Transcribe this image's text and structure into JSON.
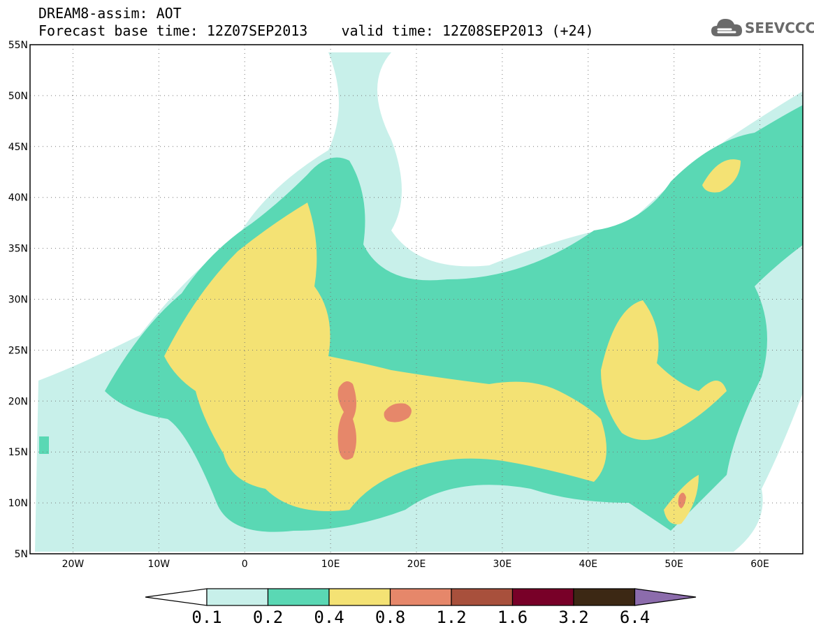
{
  "header": {
    "line1": "DREAM8-assim: AOT",
    "line2": "Forecast base time: 12Z07SEP2013    valid time: 12Z08SEP2013 (+24)"
  },
  "logo": {
    "text": "SEEVCCC",
    "icon": "cloud-icon"
  },
  "map": {
    "projection": "lat-lon",
    "lon_range": [
      -25,
      65
    ],
    "lat_range": [
      5,
      55
    ],
    "lat_ticks": [
      "5N",
      "10N",
      "15N",
      "20N",
      "25N",
      "30N",
      "35N",
      "40N",
      "45N",
      "50N",
      "55N"
    ],
    "lon_ticks": [
      "20W",
      "10W",
      "0",
      "10E",
      "20E",
      "30E",
      "40E",
      "50E",
      "60E"
    ],
    "graticule": "dotted",
    "variable": "AOT"
  },
  "colorbar": {
    "labels": [
      "0.1",
      "0.2",
      "0.4",
      "0.8",
      "1.2",
      "1.6",
      "3.2",
      "6.4"
    ],
    "colors": [
      "#c8f0ea",
      "#5ad8b4",
      "#f4e274",
      "#e6876a",
      "#a8503c",
      "#780028",
      "#3c2814"
    ],
    "under_color": "#ffffff",
    "over_color": "#8c6cac"
  }
}
